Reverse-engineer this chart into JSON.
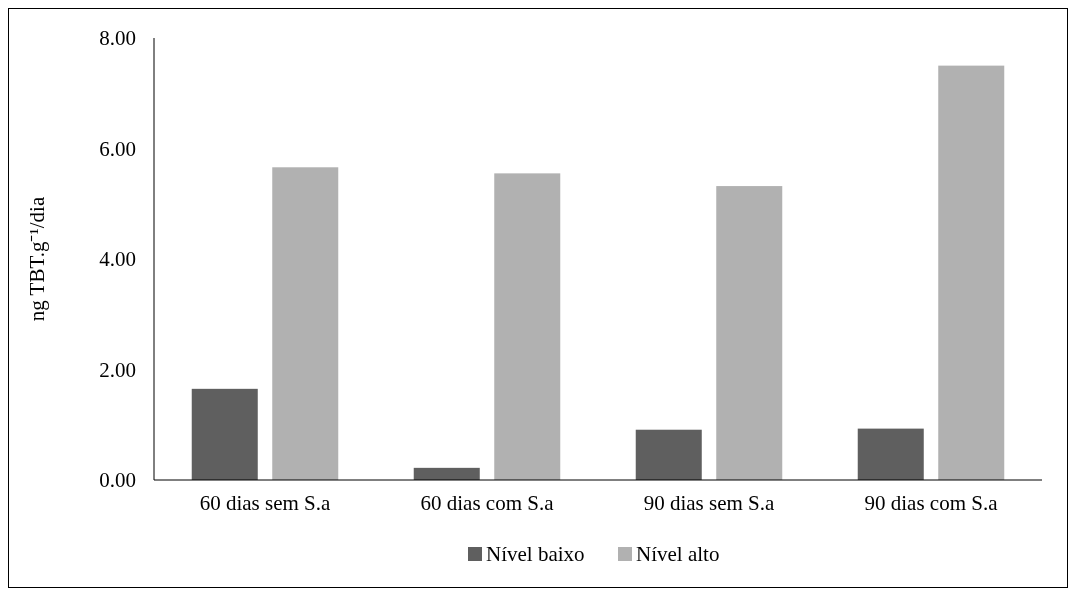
{
  "chart_data": {
    "type": "bar",
    "ylabel": "ng TBT.g⁻¹/dia",
    "categories": [
      "60 dias sem S.a",
      "60 dias com S.a",
      "90 dias sem S.a",
      "90 dias com S.a"
    ],
    "series": [
      {
        "name": "Nível baixo",
        "color": "#5f5f5f",
        "values": [
          1.65,
          0.22,
          0.91,
          0.93
        ]
      },
      {
        "name": "Nível alto",
        "color": "#b1b1b1",
        "values": [
          5.66,
          5.55,
          5.32,
          7.5
        ]
      }
    ],
    "ylim": [
      0,
      8
    ],
    "yticks": [
      {
        "value": 0,
        "label": "0.00"
      },
      {
        "value": 2,
        "label": "2.00"
      },
      {
        "value": 4,
        "label": "4.00"
      },
      {
        "value": 6,
        "label": "6.00"
      },
      {
        "value": 8,
        "label": "8.00"
      }
    ],
    "legend": "bottom"
  }
}
